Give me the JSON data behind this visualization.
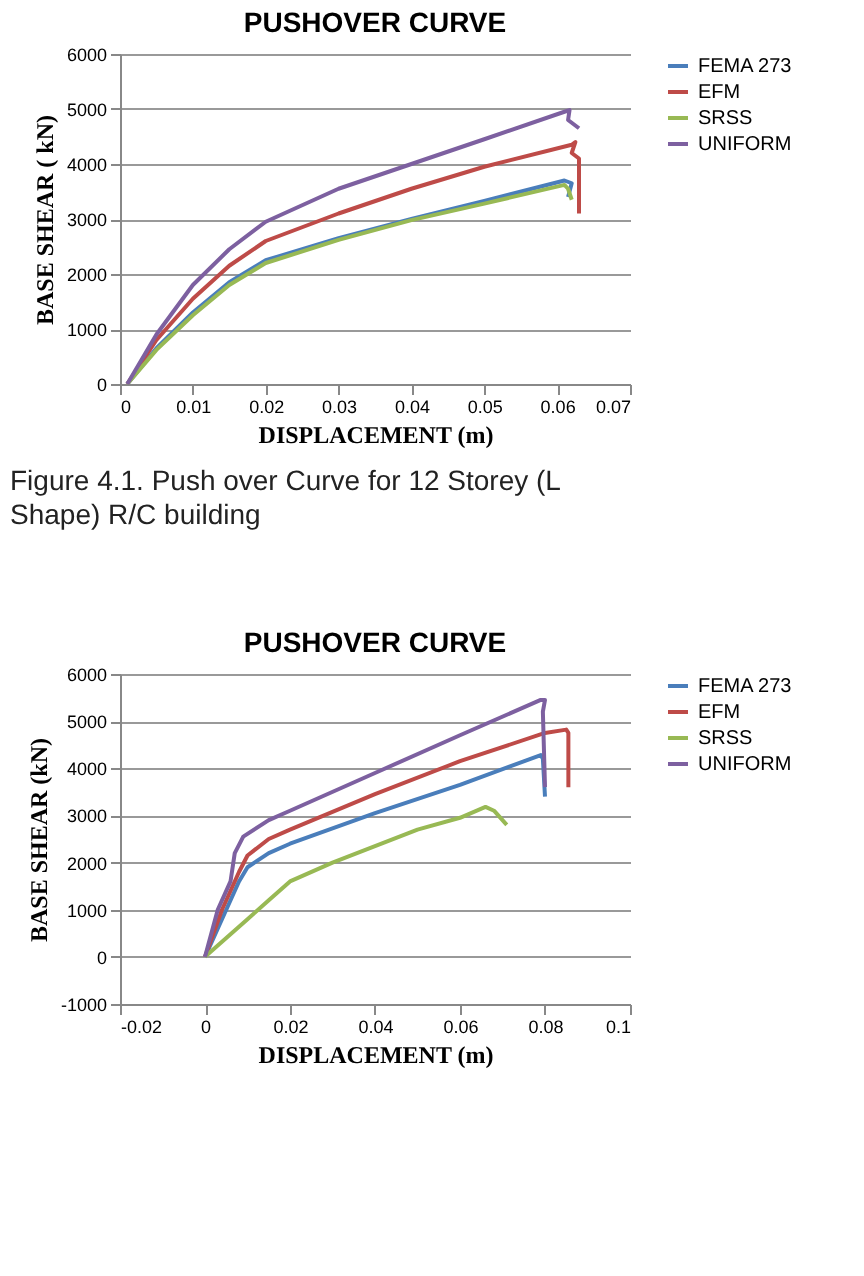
{
  "chart_data": [
    {
      "type": "line",
      "title": "PUSHOVER CURVE",
      "xlabel": "DISPLACEMENT  (m)",
      "ylabel": "BASE SHEAR ( kN)",
      "xlim": [
        0,
        0.07
      ],
      "xticks": [
        0,
        0.01,
        0.02,
        0.03,
        0.04,
        0.05,
        0.06,
        0.07
      ],
      "ylim": [
        0,
        6000
      ],
      "yticks": [
        0,
        1000,
        2000,
        3000,
        4000,
        5000,
        6000
      ],
      "grid": "y",
      "legend": "right",
      "marker": "none",
      "line_style": "solid",
      "annotations": [
        "Figure 4.1. Push over Curve for 12 Storey (L Shape) R/C building"
      ],
      "series": [
        {
          "name": "FEMA 273",
          "color": "#4a7ebb",
          "x": [
            0.001,
            0.005,
            0.01,
            0.015,
            0.02,
            0.03,
            0.04,
            0.05,
            0.061,
            0.062,
            0.0615
          ],
          "values": [
            0,
            650,
            1300,
            1850,
            2250,
            2650,
            3000,
            3330,
            3700,
            3650,
            3400
          ]
        },
        {
          "name": "EFM",
          "color": "#be4b48",
          "x": [
            0.001,
            0.005,
            0.01,
            0.015,
            0.02,
            0.03,
            0.04,
            0.05,
            0.062,
            0.0625,
            0.062,
            0.063,
            0.063
          ],
          "values": [
            0,
            800,
            1550,
            2150,
            2600,
            3100,
            3550,
            3950,
            4350,
            4400,
            4200,
            4100,
            3100
          ]
        },
        {
          "name": "SRSS",
          "color": "#98b954",
          "x": [
            0.001,
            0.005,
            0.01,
            0.015,
            0.02,
            0.03,
            0.04,
            0.05,
            0.061,
            0.0615,
            0.062
          ],
          "values": [
            0,
            620,
            1250,
            1800,
            2200,
            2620,
            2980,
            3280,
            3620,
            3550,
            3350
          ]
        },
        {
          "name": "UNIFORM",
          "color": "#7d60a0",
          "x": [
            0.001,
            0.005,
            0.01,
            0.015,
            0.02,
            0.03,
            0.04,
            0.05,
            0.061,
            0.0617,
            0.0615,
            0.063
          ],
          "values": [
            0,
            900,
            1800,
            2450,
            2950,
            3550,
            4000,
            4450,
            4950,
            4980,
            4800,
            4650
          ]
        }
      ]
    },
    {
      "type": "line",
      "title": "PUSHOVER CURVE",
      "xlabel": "DISPLACEMENT  (m)",
      "ylabel": "BASE SHEAR (kN)",
      "xlim": [
        -0.02,
        0.1
      ],
      "xticks": [
        -0.02,
        0,
        0.02,
        0.04,
        0.06,
        0.08,
        0.1
      ],
      "ylim": [
        -1000,
        6000
      ],
      "yticks": [
        -1000,
        0,
        1000,
        2000,
        3000,
        4000,
        5000,
        6000
      ],
      "grid": "y",
      "legend": "right",
      "marker": "none",
      "line_style": "solid",
      "series": [
        {
          "name": "FEMA 273",
          "color": "#4a7ebb",
          "x": [
            0,
            0.005,
            0.008,
            0.01,
            0.015,
            0.02,
            0.04,
            0.06,
            0.079,
            0.0795,
            0.08
          ],
          "values": [
            0,
            1000,
            1600,
            1900,
            2200,
            2400,
            3050,
            3650,
            4280,
            4200,
            3400
          ]
        },
        {
          "name": "EFM",
          "color": "#be4b48",
          "x": [
            0,
            0.004,
            0.008,
            0.01,
            0.015,
            0.02,
            0.04,
            0.06,
            0.08,
            0.085,
            0.0855,
            0.0855
          ],
          "values": [
            0,
            1000,
            1800,
            2150,
            2500,
            2700,
            3450,
            4150,
            4750,
            4820,
            4750,
            3600
          ]
        },
        {
          "name": "SRSS",
          "color": "#98b954",
          "x": [
            0,
            0.01,
            0.015,
            0.02,
            0.03,
            0.04,
            0.05,
            0.06,
            0.066,
            0.068,
            0.071
          ],
          "values": [
            0,
            800,
            1200,
            1600,
            2000,
            2350,
            2700,
            2950,
            3180,
            3100,
            2800
          ]
        },
        {
          "name": "UNIFORM",
          "color": "#7d60a0",
          "x": [
            0,
            0.003,
            0.006,
            0.007,
            0.009,
            0.015,
            0.02,
            0.04,
            0.06,
            0.079,
            0.08,
            0.0795,
            0.08
          ],
          "values": [
            0,
            1000,
            1600,
            2200,
            2550,
            2900,
            3100,
            3900,
            4700,
            5450,
            5450,
            5200,
            3600
          ]
        }
      ]
    }
  ]
}
